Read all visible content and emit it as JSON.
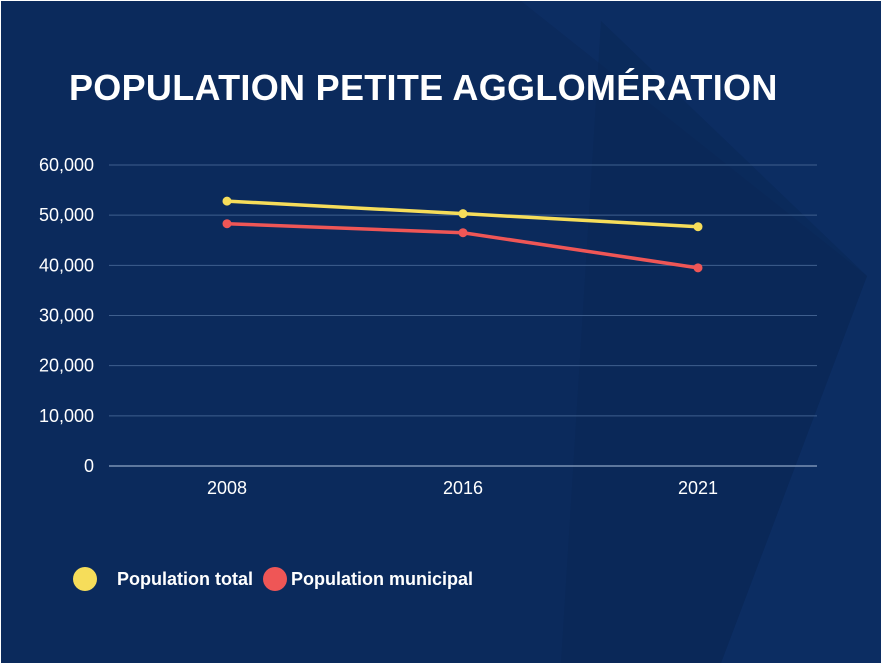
{
  "colors": {
    "background": "#0b2a5c",
    "grid": "#3f5f8e",
    "axis": "#8fa6c6",
    "series_total": "#f6dd5a",
    "series_municipal": "#ef5656"
  },
  "chart_data": {
    "type": "line",
    "title": "POPULATION PETITE AGGLOMÉRATION",
    "x": [
      "2008",
      "2016",
      "2021"
    ],
    "series": [
      {
        "name": "Population total",
        "values": [
          52800,
          50300,
          47700
        ],
        "color": "#f6dd5a"
      },
      {
        "name": "Population municipal",
        "values": [
          48300,
          46500,
          39500
        ],
        "color": "#ef5656"
      }
    ],
    "ylim": [
      0,
      60000
    ],
    "yticks": [
      "0",
      "10,000",
      "20,000",
      "30,000",
      "40,000",
      "50,000",
      "60,000"
    ],
    "grid": true,
    "legend": "bottom-left"
  }
}
